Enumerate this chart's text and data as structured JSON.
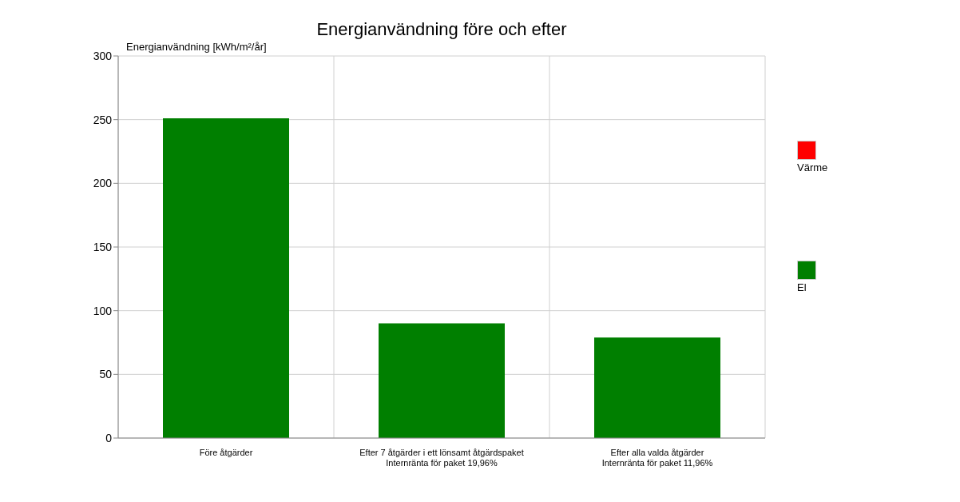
{
  "chart_data": {
    "type": "bar",
    "title": "Energianvändning före och efter",
    "ylabel": "Energianvändning [kWh/m²/år]",
    "categories": [
      "Före åtgärder",
      "Efter 7 åtgärder i ett lönsamt åtgärdspaket\nInternränta för paket 19,96%",
      "Efter alla valda åtgärder\nInternränta för paket 11,96%"
    ],
    "series": [
      {
        "name": "El",
        "color": "#007f00",
        "values": [
          251,
          90,
          79
        ]
      },
      {
        "name": "Värme",
        "color": "#ff0000",
        "values": [
          0,
          0,
          0
        ]
      }
    ],
    "stacked": true,
    "ylim": [
      0,
      300
    ],
    "yticks": [
      0,
      50,
      100,
      150,
      200,
      250,
      300
    ],
    "grid": true,
    "legend": "right"
  }
}
